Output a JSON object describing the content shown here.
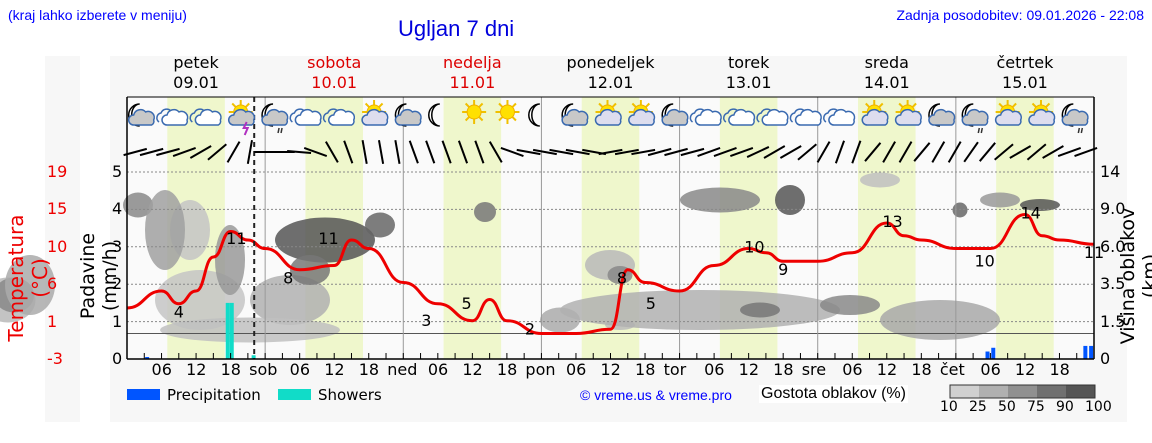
{
  "header": {
    "hint": "(kraj lahko izberete v meniju)",
    "title": "Ugljan 7 dni",
    "updated": "Zadnja posodobitev: 09.01.2026 - 22:08"
  },
  "days": [
    {
      "name": "petek",
      "date": "09.01",
      "color": "#000000",
      "abbr": ""
    },
    {
      "name": "sobota",
      "date": "10.01",
      "color": "#dd0000",
      "abbr": "sob"
    },
    {
      "name": "nedelja",
      "date": "11.01",
      "color": "#dd0000",
      "abbr": "ned"
    },
    {
      "name": "ponedeljek",
      "date": "12.01",
      "color": "#000000",
      "abbr": "pon"
    },
    {
      "name": "torek",
      "date": "13.01",
      "color": "#000000",
      "abbr": "tor"
    },
    {
      "name": "sreda",
      "date": "14.01",
      "color": "#000000",
      "abbr": "sre"
    },
    {
      "name": "četrtek",
      "date": "15.01",
      "color": "#000000",
      "abbr": "čet"
    }
  ],
  "hour_labels": [
    "06",
    "12",
    "18"
  ],
  "axes": {
    "temperature_label": "Temperatura (°C)",
    "temperature_ticks": [
      "19",
      "15",
      "10",
      "6",
      "1",
      "-3"
    ],
    "precip_label": "Padavine (mm/h)",
    "precip_ticks": [
      "5",
      "4",
      "3",
      "2",
      "1",
      "0"
    ],
    "cloud_height_label": "Višina oblakov (km)",
    "cloud_height_ticks": [
      "14",
      "9.0",
      "6.0",
      "3.5",
      "1.5",
      "0"
    ]
  },
  "legend": {
    "precipitation": "Precipitation",
    "showers": "Showers",
    "precipitation_color": "#0055ff",
    "showers_color": "#11dcc8",
    "copyright": "© vreme.us & vreme.pro",
    "cloud_density_title": "Gostota oblakov (%)",
    "cloud_density_ticks": [
      "10",
      "25",
      "50",
      "75",
      "90",
      "100"
    ],
    "cloud_density_colors": [
      "#d0d0d0",
      "#b0b0b0",
      "#909090",
      "#707070",
      "#555555"
    ]
  },
  "colors": {
    "temperature_line": "#ee0000",
    "daylight": "#eff7cc",
    "header_blue": "#0000ff"
  },
  "weather_icons": [
    "moon-cloud",
    "cloud",
    "cloud",
    "sun-cloud-thunder",
    "moon-cloud-rain",
    "cloud",
    "cloud",
    "sun-cloud",
    "moon-cloud",
    "moon",
    "sun",
    "sun",
    "moon",
    "moon-cloud",
    "sun-cloud",
    "sun-cloud",
    "moon-cloud",
    "cloud",
    "cloud",
    "cloud",
    "cloud",
    "cloud",
    "sun-cloud",
    "sun-cloud",
    "moon-cloud",
    "moon-cloud-rain",
    "sun-cloud",
    "sun-cloud",
    "moon-cloud-rain"
  ],
  "chart_data": {
    "type": "line",
    "title": "Ugljan 7 dni",
    "xlabel": "",
    "ylabel": "Temperatura (°C)",
    "ylim": [
      -3,
      19
    ],
    "secondary_axes": [
      {
        "label": "Padavine (mm/h)",
        "range": [
          0,
          5
        ]
      },
      {
        "label": "Višina oblakov (km)",
        "ticks": [
          0,
          1.5,
          3.5,
          6.0,
          9.0,
          14
        ]
      }
    ],
    "x_hours": [
      0,
      6,
      9,
      12,
      15,
      18,
      21,
      24,
      30,
      36,
      39,
      42,
      48,
      54,
      60,
      63,
      66,
      72,
      78,
      84,
      87,
      90,
      96,
      102,
      108,
      111,
      114,
      120,
      126,
      132,
      135,
      138,
      144,
      150,
      156,
      159,
      162,
      168
    ],
    "temperature": [
      3,
      5,
      3.5,
      5,
      9,
      12,
      11,
      10,
      7.5,
      8,
      11,
      10,
      6,
      3.5,
      1.5,
      4,
      1.5,
      0,
      0,
      0.5,
      7.5,
      6,
      5,
      8,
      10,
      9.5,
      8.5,
      8.5,
      9.5,
      13,
      11.5,
      11,
      10,
      10,
      14,
      11.5,
      11,
      10.5
    ],
    "temperature_labels": [
      {
        "hour": 9,
        "value": 4
      },
      {
        "hour": 19,
        "value": 11
      },
      {
        "hour": 28,
        "value": 8
      },
      {
        "hour": 35,
        "value": 11
      },
      {
        "hour": 52,
        "value": 3
      },
      {
        "hour": 59,
        "value": 5
      },
      {
        "hour": 70,
        "value": 2
      },
      {
        "hour": 86,
        "value": 8
      },
      {
        "hour": 91,
        "value": 5
      },
      {
        "hour": 109,
        "value": 10
      },
      {
        "hour": 114,
        "value": 9
      },
      {
        "hour": 133,
        "value": 13
      },
      {
        "hour": 149,
        "value": 10
      },
      {
        "hour": 157,
        "value": 14
      },
      {
        "hour": 168,
        "value": 11
      }
    ],
    "precipitation_bars": [
      {
        "hour": 3.5,
        "mm": 0.05,
        "type": "precipitation"
      },
      {
        "hour": 17.5,
        "mm": 1.5,
        "type": "showers"
      },
      {
        "hour": 18.2,
        "mm": 1.5,
        "type": "showers"
      },
      {
        "hour": 22,
        "mm": 0.1,
        "type": "showers"
      },
      {
        "hour": 149.5,
        "mm": 0.2,
        "type": "precipitation"
      },
      {
        "hour": 150.5,
        "mm": 0.3,
        "type": "precipitation"
      },
      {
        "hour": 166.5,
        "mm": 0.35,
        "type": "precipitation"
      },
      {
        "hour": 167.5,
        "mm": 0.35,
        "type": "precipitation"
      }
    ],
    "current_time_hour": 22.1,
    "daylight_hours": [
      7,
      17
    ],
    "legend": [
      "Precipitation",
      "Showers"
    ],
    "grid": true
  }
}
